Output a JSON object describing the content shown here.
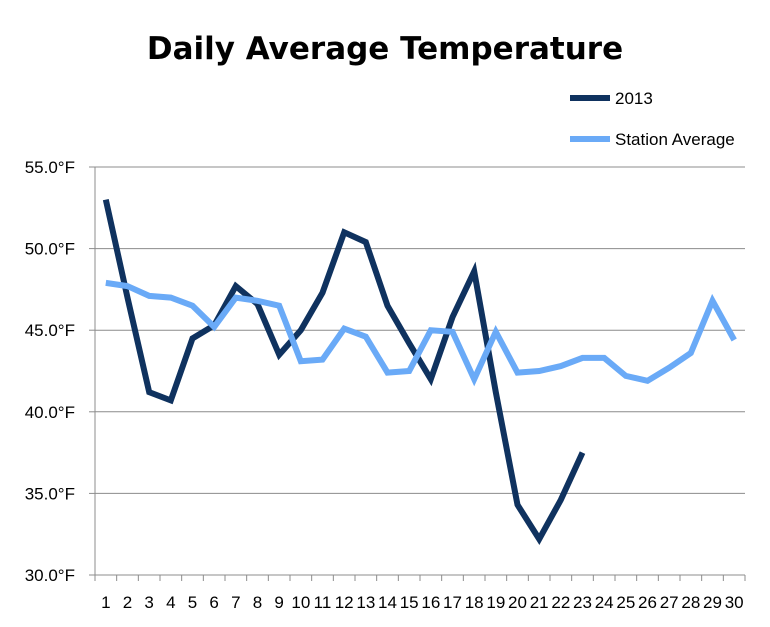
{
  "chart_data": {
    "type": "line",
    "title": "Daily Average Temperature",
    "xlabel": "",
    "ylabel": "",
    "categories": [
      "1",
      "2",
      "3",
      "4",
      "5",
      "6",
      "7",
      "8",
      "9",
      "10",
      "11",
      "12",
      "13",
      "14",
      "15",
      "16",
      "17",
      "18",
      "19",
      "20",
      "21",
      "22",
      "23",
      "24",
      "25",
      "26",
      "27",
      "28",
      "29",
      "30"
    ],
    "y_ticks": [
      "30.0°F",
      "35.0°F",
      "40.0°F",
      "45.0°F",
      "50.0°F",
      "55.0°F"
    ],
    "ylim": [
      30,
      55
    ],
    "grid": true,
    "legend_position": "top-right",
    "series": [
      {
        "name": "2013",
        "color": "#0f325f",
        "values": [
          53.0,
          47.0,
          41.2,
          40.7,
          44.5,
          45.3,
          47.7,
          46.6,
          43.5,
          45.0,
          47.3,
          51.0,
          50.4,
          46.5,
          44.2,
          42.0,
          45.8,
          48.6,
          41.2,
          34.3,
          32.2,
          34.6,
          37.5,
          null,
          null,
          null,
          null,
          null,
          null,
          null
        ]
      },
      {
        "name": "Station Average",
        "color": "#6aaaf7",
        "values": [
          47.9,
          47.7,
          47.1,
          47.0,
          46.5,
          45.2,
          47.0,
          46.8,
          46.5,
          43.1,
          43.2,
          45.1,
          44.6,
          42.4,
          42.5,
          45.0,
          44.9,
          42.0,
          44.9,
          42.4,
          42.5,
          42.8,
          43.3,
          43.3,
          42.2,
          41.9,
          42.7,
          43.6,
          46.8,
          44.4
        ]
      }
    ]
  }
}
